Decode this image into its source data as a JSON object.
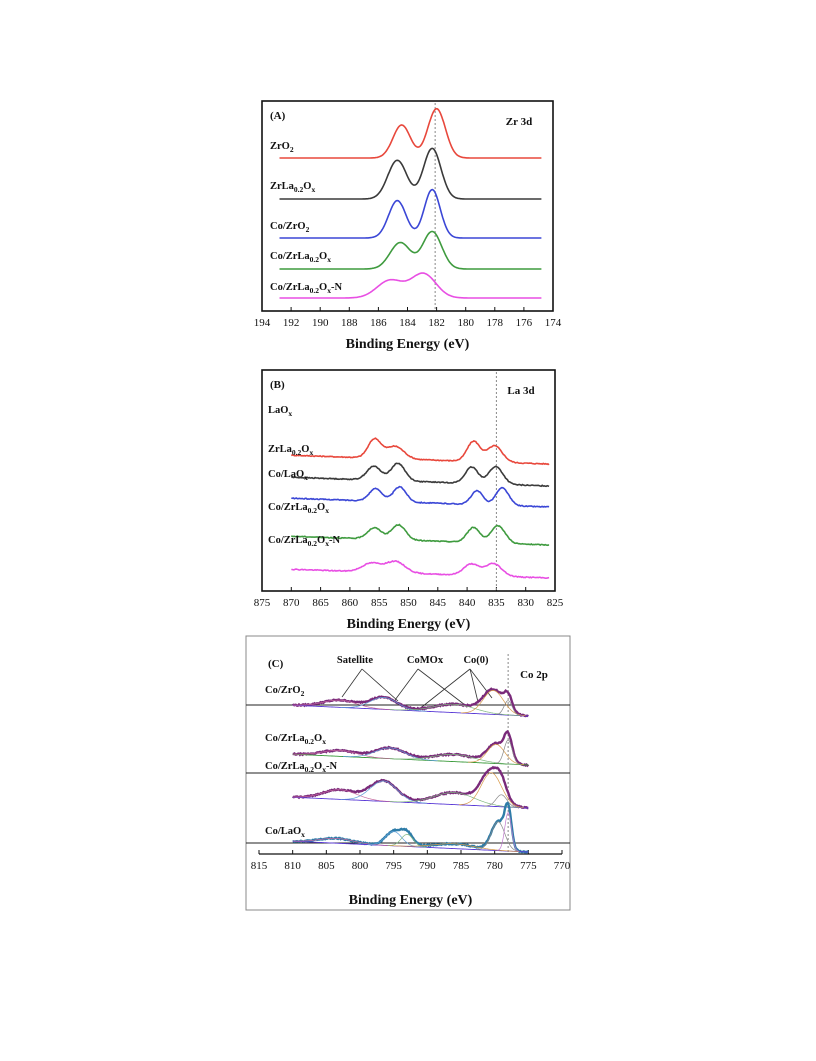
{
  "chart_data": [
    {
      "type": "line",
      "panel": "(A)",
      "species": "Zr 3d",
      "xlabel": "Binding Energy (eV)",
      "xlim": [
        194,
        174
      ],
      "x_reversed": true,
      "xticks": [
        194,
        192,
        190,
        188,
        186,
        184,
        182,
        180,
        178,
        176,
        174
      ],
      "reference_line_x": 182.1,
      "series": [
        {
          "name": [
            "ZrO",
            "2",
            ""
          ],
          "color": "#e8483c",
          "peaks": [
            [
              184.4,
              0.75,
              0.6
            ],
            [
              182.0,
              1.12,
              0.6
            ]
          ]
        },
        {
          "name": [
            "ZrLa",
            "0.2",
            "O",
            "x",
            ""
          ],
          "color": "#3a3a3a",
          "peaks": [
            [
              184.7,
              0.88,
              0.65
            ],
            [
              182.3,
              1.15,
              0.6
            ]
          ]
        },
        {
          "name": [
            "Co/ZrO",
            "2",
            ""
          ],
          "color": "#3b47d6",
          "peaks": [
            [
              184.7,
              0.85,
              0.6
            ],
            [
              182.3,
              1.1,
              0.55
            ]
          ]
        },
        {
          "name": [
            "Co/ZrLa",
            "0.2",
            "O",
            "x",
            ""
          ],
          "color": "#3f9b3f",
          "peaks": [
            [
              184.5,
              0.6,
              0.7
            ],
            [
              182.3,
              0.85,
              0.65
            ]
          ]
        },
        {
          "name": [
            "Co/ZrLa",
            "0.2",
            "O",
            "x",
            "-N"
          ],
          "color": "#e84fe3",
          "peaks": [
            [
              185.2,
              0.4,
              0.9
            ],
            [
              182.9,
              0.55,
              0.85
            ]
          ]
        }
      ]
    },
    {
      "type": "line",
      "panel": "(B)",
      "species": "La 3d",
      "xlabel": "Binding Energy (eV)",
      "xlim": [
        875,
        825
      ],
      "x_reversed": true,
      "xticks": [
        875,
        870,
        865,
        860,
        855,
        850,
        845,
        840,
        835,
        830,
        825
      ],
      "reference_line_x": 835,
      "series": [
        {
          "name": [
            "LaO",
            "x",
            ""
          ],
          "color": "#e8483c",
          "peaks": [
            [
              855.8,
              0.75,
              1.1
            ],
            [
              852.3,
              0.5,
              1.5
            ],
            [
              838.9,
              0.8,
              1.1
            ],
            [
              835.3,
              0.65,
              1.3
            ]
          ]
        },
        {
          "name": [
            "ZrLa",
            "0.2",
            "O",
            "x",
            ""
          ],
          "color": "#3a3a3a",
          "peaks": [
            [
              855.9,
              0.55,
              1.2
            ],
            [
              851.8,
              0.7,
              1.2
            ],
            [
              839.2,
              0.65,
              1.1
            ],
            [
              835.1,
              0.7,
              1.2
            ]
          ]
        },
        {
          "name": [
            "Co/LaO",
            "x",
            ""
          ],
          "color": "#3b47d6",
          "peaks": [
            [
              855.6,
              0.5,
              1.1
            ],
            [
              851.5,
              0.6,
              1.1
            ],
            [
              838.3,
              0.55,
              1.0
            ],
            [
              834.0,
              0.7,
              1.1
            ]
          ]
        },
        {
          "name": [
            "Co/ZrLa",
            "0.2",
            "O",
            "x",
            ""
          ],
          "color": "#3f9b3f",
          "peaks": [
            [
              855.8,
              0.45,
              1.2
            ],
            [
              851.7,
              0.6,
              1.2
            ],
            [
              838.9,
              0.6,
              1.1
            ],
            [
              834.7,
              0.7,
              1.2
            ]
          ]
        },
        {
          "name": [
            "Co/ZrLa",
            "0.2",
            "O",
            "x",
            "-N"
          ],
          "color": "#e84fe3",
          "peaks": [
            [
              856.3,
              0.35,
              1.6
            ],
            [
              852.2,
              0.45,
              1.6
            ],
            [
              839.3,
              0.45,
              1.3
            ],
            [
              835.5,
              0.5,
              1.4
            ]
          ]
        }
      ]
    },
    {
      "type": "line",
      "panel": "(C)",
      "species": "Co 2p",
      "xlabel": "Binding Energy (eV)",
      "xlim": [
        815,
        770
      ],
      "x_reversed": true,
      "xticks": [
        815,
        810,
        805,
        800,
        795,
        790,
        785,
        780,
        775,
        770
      ],
      "reference_line_x": 778,
      "annotations": [
        "Satellite",
        "CoMOx",
        "Co(0)"
      ],
      "series": [
        {
          "name": [
            "Co/ZrO",
            "2",
            ""
          ],
          "color": "#7a2a7a",
          "peaks": [
            [
              803.0,
              0.3,
              2.5
            ],
            [
              796.5,
              0.5,
              2.0
            ],
            [
              786.0,
              0.35,
              3.0
            ],
            [
              780.2,
              1.0,
              1.5
            ],
            [
              778.0,
              0.6,
              0.6
            ]
          ]
        },
        {
          "name": [
            "Co/ZrLa",
            "0.2",
            "O",
            "x",
            ""
          ],
          "color": "#7a2a7a",
          "peaks": [
            [
              803.0,
              0.25,
              2.5
            ],
            [
              795.5,
              0.45,
              2.2
            ],
            [
              786.0,
              0.3,
              3.0
            ],
            [
              779.8,
              0.8,
              1.3
            ],
            [
              778.0,
              1.0,
              0.6
            ]
          ]
        },
        {
          "name": [
            "Co/ZrLa",
            "0.2",
            "O",
            "x",
            "-N"
          ],
          "color": "#7a2a7a",
          "peaks": [
            [
              803.0,
              0.4,
              2.5
            ],
            [
              796.5,
              0.85,
              2.0
            ],
            [
              786.0,
              0.5,
              3.0
            ],
            [
              780.5,
              1.4,
              1.5
            ],
            [
              779.0,
              0.5,
              0.8
            ]
          ]
        },
        {
          "name": [
            "Co/LaO",
            "x",
            ""
          ],
          "color": "#2e7ca8",
          "peaks": [
            [
              803.5,
              0.2,
              2.5
            ],
            [
              795.0,
              0.6,
              1.2
            ],
            [
              793.0,
              0.5,
              0.9
            ],
            [
              786.0,
              0.2,
              3.0
            ],
            [
              779.5,
              1.2,
              1.0
            ],
            [
              778.0,
              1.6,
              0.5
            ]
          ]
        }
      ]
    }
  ]
}
